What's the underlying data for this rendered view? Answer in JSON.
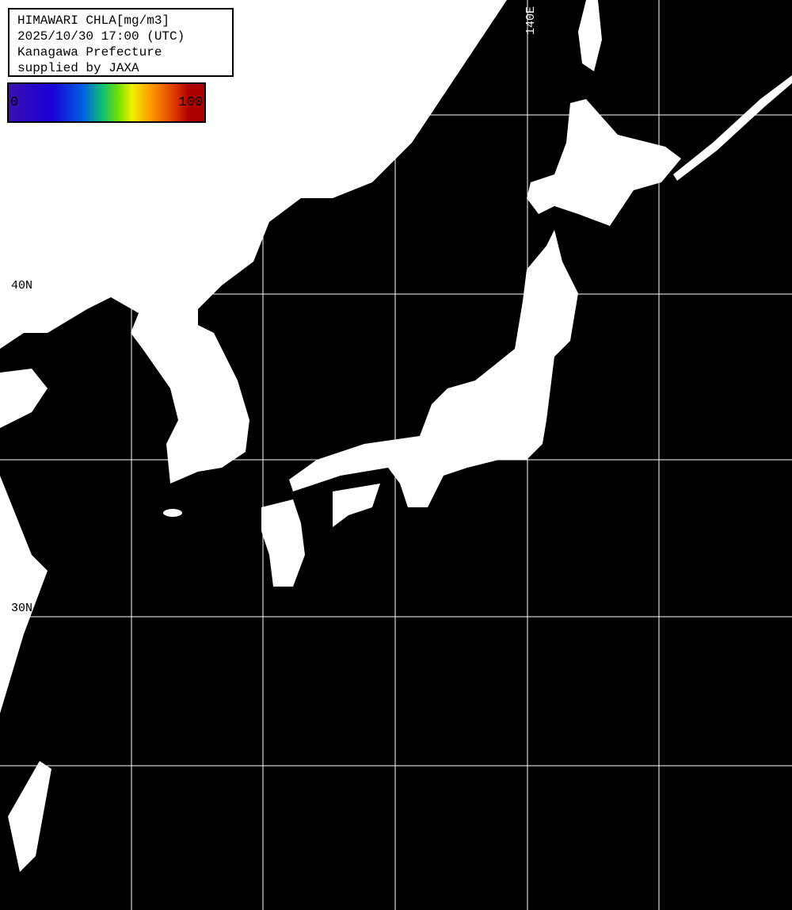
{
  "header": {
    "lines": [
      "HIMAWARI CHLA[mg/m3]",
      "2025/10/30 17:00 (UTC)",
      "Kanagawa Prefecture",
      "supplied by JAXA"
    ]
  },
  "colorbar": {
    "min_label": "0",
    "max_label": "100",
    "colors": [
      "#3a10b0",
      "#1a00d8",
      "#0060e0",
      "#10c070",
      "#70e000",
      "#f0f000",
      "#ffa000",
      "#e04000",
      "#b00000"
    ]
  },
  "grid_labels": {
    "lat_40": "40N",
    "lat_30": "30N",
    "lon_140": "140E"
  },
  "colors": {
    "land": "#ffffff",
    "sea_no_data": "#000000",
    "grid": "#ffffff"
  }
}
